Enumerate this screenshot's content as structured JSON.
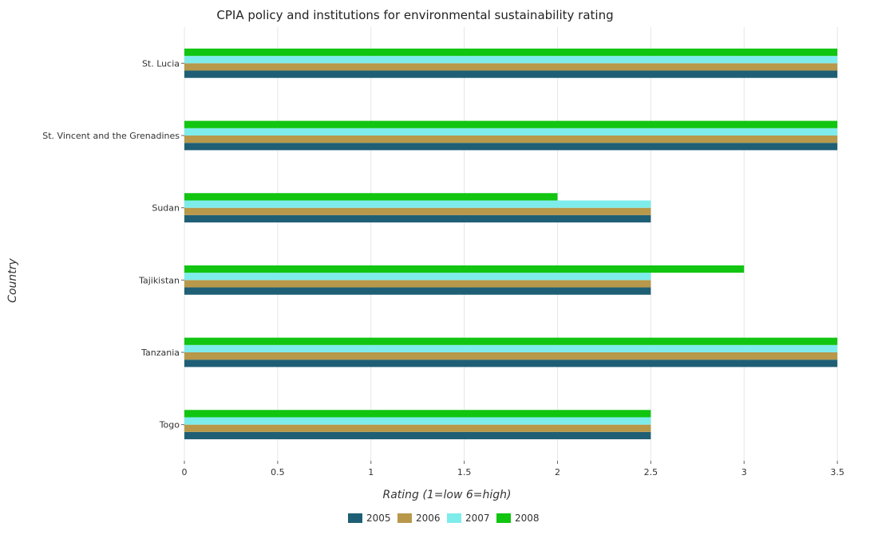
{
  "chart_data": {
    "type": "bar",
    "orientation": "horizontal",
    "title": "CPIA policy and institutions for environmental sustainability rating",
    "xlabel": "Rating (1=low 6=high)",
    "ylabel": "Country",
    "xlim": [
      0,
      3.675
    ],
    "xticks": [
      0,
      0.5,
      1,
      1.5,
      2,
      2.5,
      3,
      3.5
    ],
    "xtick_labels": [
      "0",
      "0.5",
      "1",
      "1.5",
      "2",
      "2.5",
      "3",
      "3.5"
    ],
    "categories": [
      "St. Lucia",
      "St. Vincent and the Grenadines",
      "Sudan",
      "Tajikistan",
      "Tanzania",
      "Togo"
    ],
    "series": [
      {
        "name": "2005",
        "color": "#1f5f75",
        "values": [
          3.5,
          3.5,
          2.5,
          2.5,
          3.5,
          2.5
        ]
      },
      {
        "name": "2006",
        "color": "#b8984a",
        "values": [
          3.5,
          3.5,
          2.5,
          2.5,
          3.5,
          2.5
        ]
      },
      {
        "name": "2007",
        "color": "#7fecec",
        "values": [
          3.5,
          3.5,
          2.5,
          2.5,
          3.5,
          2.5
        ]
      },
      {
        "name": "2008",
        "color": "#11c511",
        "values": [
          3.5,
          3.5,
          2.0,
          3.0,
          3.5,
          2.5
        ]
      }
    ],
    "grid": true,
    "legend_position": "bottom-center"
  }
}
